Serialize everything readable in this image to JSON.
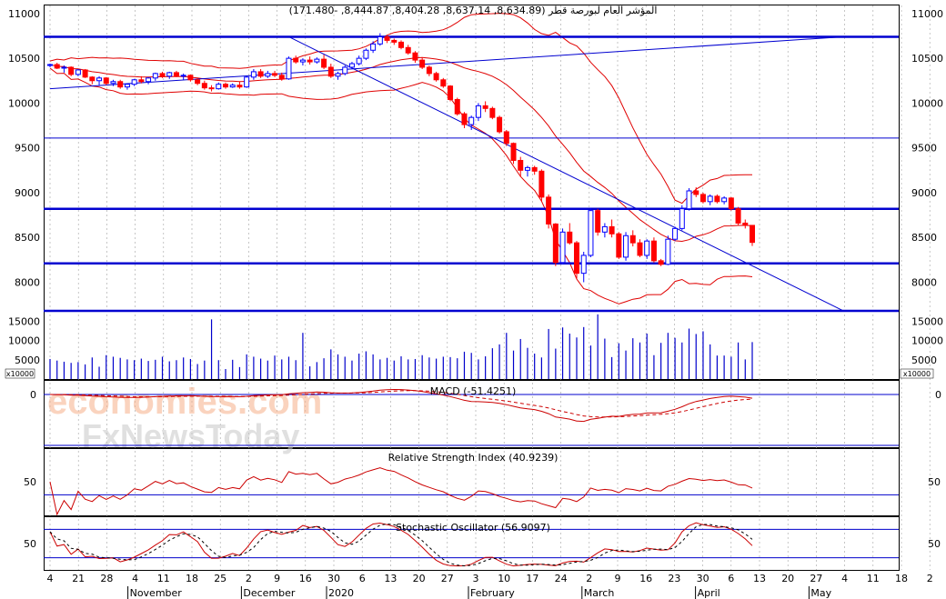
{
  "chart_data": [
    {
      "type": "candlestick",
      "panel": "price",
      "title": "المؤشر العام لبورصة قطر (8,634.89, 8,637.14, 8,404.28, 8,444.87, -171.480)",
      "ylim": [
        7650,
        11100
      ],
      "y_ticks": [
        8000,
        8500,
        9000,
        9500,
        10000,
        10500,
        11000
      ],
      "horizontal_lines": [
        10740,
        9610,
        8820,
        8210,
        7680
      ],
      "trendlines": [
        {
          "from": [
            0,
            10160
          ],
          "to": [
            113,
            10740
          ]
        },
        {
          "from": [
            34,
            10740
          ],
          "to": [
            113,
            7680
          ]
        }
      ],
      "colors": {
        "up": "#0000ff",
        "down": "#ff0000",
        "bands": "#e00000",
        "lines": "#0000d0"
      }
    },
    {
      "type": "bar",
      "panel": "volume",
      "unit_label": "x10000",
      "ylim": [
        0,
        17000
      ],
      "y_ticks": [
        5000,
        10000,
        15000
      ],
      "values": [
        5200,
        4800,
        4500,
        4200,
        4400,
        3800,
        5600,
        3200,
        6200,
        5800,
        5500,
        5100,
        4900,
        5300,
        4700,
        5000,
        5800,
        4600,
        4900,
        5600,
        5200,
        3900,
        4800,
        15500,
        4900,
        2600,
        5000,
        3100,
        6400,
        5800,
        5300,
        4800,
        6100,
        5100,
        5800,
        4900,
        12000,
        3300,
        4400,
        5400,
        7700,
        6400,
        5800,
        4800,
        6600,
        7200,
        6400,
        5100,
        5500,
        4800,
        5900,
        5100,
        5200,
        6200,
        5600,
        5300,
        5800,
        5700,
        5400,
        7100,
        6800,
        5100,
        5900,
        8000,
        9000,
        12000,
        7400,
        10400,
        8100,
        6600,
        5600,
        13000,
        7900,
        13400,
        11800,
        10800,
        13500,
        8700,
        16800,
        10500,
        5700,
        9300,
        7400,
        10600,
        9500,
        11800,
        6200,
        9400,
        12000,
        10700,
        9500,
        13100,
        11700,
        12400,
        9000,
        6100,
        6100,
        5800,
        9500,
        5100,
        9600
      ]
    },
    {
      "type": "line",
      "panel": "macd",
      "title": "MACD (-51.4251)",
      "y_ticks": [
        0
      ],
      "series": [
        {
          "values": []
        }
      ]
    },
    {
      "type": "line",
      "panel": "rsi",
      "title": "Relative Strength Index (40.9239)",
      "y_ticks": [
        50
      ]
    },
    {
      "type": "line",
      "panel": "stochastic",
      "title": "Stochastic Oscillator (56.9097)",
      "y_ticks": [
        50
      ]
    }
  ],
  "x_axis": {
    "ticks": [
      "4",
      "21",
      "28",
      "4",
      "11",
      "18",
      "25",
      "2",
      "9",
      "16",
      "30",
      "6",
      "13",
      "20",
      "27",
      "3",
      "10",
      "17",
      "24",
      "2",
      "9",
      "16",
      "23",
      "30",
      "6",
      "13",
      "20",
      "27",
      "4",
      "11",
      "18",
      "2"
    ],
    "months": [
      "November",
      "December",
      "2020",
      "February",
      "March",
      "April",
      "May"
    ]
  },
  "price_data": [
    [
      10420,
      10440,
      10400,
      10430
    ],
    [
      10430,
      10450,
      10380,
      10390
    ],
    [
      10390,
      10420,
      10340,
      10400
    ],
    [
      10400,
      10410,
      10300,
      10320
    ],
    [
      10320,
      10380,
      10300,
      10370
    ],
    [
      10370,
      10380,
      10280,
      10290
    ],
    [
      10290,
      10300,
      10210,
      10250
    ],
    [
      10250,
      10300,
      10200,
      10280
    ],
    [
      10280,
      10290,
      10200,
      10220
    ],
    [
      10220,
      10260,
      10190,
      10240
    ],
    [
      10240,
      10260,
      10160,
      10180
    ],
    [
      10180,
      10220,
      10150,
      10210
    ],
    [
      10210,
      10270,
      10190,
      10260
    ],
    [
      10260,
      10300,
      10220,
      10240
    ],
    [
      10240,
      10290,
      10210,
      10280
    ],
    [
      10280,
      10340,
      10250,
      10330
    ],
    [
      10330,
      10350,
      10280,
      10300
    ],
    [
      10300,
      10350,
      10270,
      10340
    ],
    [
      10340,
      10360,
      10290,
      10300
    ],
    [
      10300,
      10330,
      10260,
      10310
    ],
    [
      10310,
      10320,
      10240,
      10260
    ],
    [
      10260,
      10280,
      10200,
      10220
    ],
    [
      10220,
      10250,
      10150,
      10170
    ],
    [
      10170,
      10200,
      10130,
      10160
    ],
    [
      10160,
      10230,
      10150,
      10210
    ],
    [
      10210,
      10230,
      10160,
      10180
    ],
    [
      10180,
      10220,
      10170,
      10200
    ],
    [
      10200,
      10240,
      10160,
      10180
    ],
    [
      10180,
      10300,
      10170,
      10290
    ],
    [
      10290,
      10380,
      10260,
      10350
    ],
    [
      10350,
      10380,
      10280,
      10300
    ],
    [
      10300,
      10360,
      10280,
      10330
    ],
    [
      10330,
      10360,
      10290,
      10310
    ],
    [
      10310,
      10340,
      10250,
      10270
    ],
    [
      10270,
      10520,
      10260,
      10500
    ],
    [
      10500,
      10530,
      10440,
      10460
    ],
    [
      10460,
      10500,
      10420,
      10480
    ],
    [
      10480,
      10520,
      10430,
      10460
    ],
    [
      10460,
      10510,
      10440,
      10490
    ],
    [
      10490,
      10540,
      10380,
      10400
    ],
    [
      10400,
      10440,
      10280,
      10300
    ],
    [
      10300,
      10350,
      10260,
      10330
    ],
    [
      10330,
      10420,
      10310,
      10400
    ],
    [
      10400,
      10460,
      10380,
      10440
    ],
    [
      10440,
      10530,
      10420,
      10500
    ],
    [
      10500,
      10610,
      10480,
      10590
    ],
    [
      10590,
      10690,
      10560,
      10660
    ],
    [
      10660,
      10780,
      10640,
      10740
    ],
    [
      10740,
      10760,
      10670,
      10700
    ],
    [
      10700,
      10720,
      10650,
      10680
    ],
    [
      10680,
      10700,
      10600,
      10620
    ],
    [
      10620,
      10650,
      10540,
      10560
    ],
    [
      10560,
      10580,
      10450,
      10480
    ],
    [
      10480,
      10510,
      10380,
      10400
    ],
    [
      10400,
      10420,
      10300,
      10330
    ],
    [
      10330,
      10350,
      10240,
      10260
    ],
    [
      10260,
      10280,
      10170,
      10190
    ],
    [
      10190,
      10200,
      10020,
      10040
    ],
    [
      10040,
      10060,
      9860,
      9880
    ],
    [
      9880,
      9900,
      9720,
      9760
    ],
    [
      9760,
      9860,
      9700,
      9840
    ],
    [
      9840,
      10000,
      9800,
      9970
    ],
    [
      9970,
      10020,
      9900,
      9940
    ],
    [
      9940,
      9960,
      9820,
      9840
    ],
    [
      9840,
      9860,
      9660,
      9680
    ],
    [
      9680,
      9700,
      9520,
      9550
    ],
    [
      9550,
      9560,
      9320,
      9360
    ],
    [
      9360,
      9400,
      9180,
      9250
    ],
    [
      9250,
      9300,
      9180,
      9280
    ],
    [
      9280,
      9300,
      9200,
      9240
    ],
    [
      9240,
      9260,
      8900,
      8950
    ],
    [
      8950,
      8980,
      8600,
      8650
    ],
    [
      8650,
      8660,
      8180,
      8220
    ],
    [
      8220,
      8600,
      8200,
      8560
    ],
    [
      8560,
      8660,
      8420,
      8440
    ],
    [
      8440,
      8460,
      8040,
      8100
    ],
    [
      8100,
      8340,
      8000,
      8300
    ],
    [
      8300,
      8830,
      8280,
      8800
    ],
    [
      8800,
      8820,
      8520,
      8560
    ],
    [
      8560,
      8660,
      8500,
      8620
    ],
    [
      8620,
      8700,
      8500,
      8540
    ],
    [
      8540,
      8560,
      8260,
      8280
    ],
    [
      8280,
      8560,
      8240,
      8520
    ],
    [
      8520,
      8580,
      8400,
      8440
    ],
    [
      8440,
      8480,
      8280,
      8300
    ],
    [
      8300,
      8480,
      8260,
      8460
    ],
    [
      8460,
      8500,
      8220,
      8240
    ],
    [
      8240,
      8260,
      8180,
      8200
    ],
    [
      8200,
      8520,
      8190,
      8480
    ],
    [
      8480,
      8620,
      8460,
      8600
    ],
    [
      8600,
      8860,
      8580,
      8820
    ],
    [
      8820,
      9050,
      8800,
      9020
    ],
    [
      9020,
      9060,
      8950,
      8980
    ],
    [
      8980,
      9000,
      8880,
      8900
    ],
    [
      8900,
      8980,
      8860,
      8960
    ],
    [
      8960,
      8980,
      8880,
      8900
    ],
    [
      8900,
      8960,
      8870,
      8940
    ],
    [
      8940,
      8950,
      8800,
      8820
    ],
    [
      8820,
      8840,
      8640,
      8660
    ],
    [
      8660,
      8700,
      8600,
      8640
    ],
    [
      8634.89,
      8637.14,
      8404.28,
      8444.87
    ]
  ],
  "watermark": {
    "line1": "economies.com",
    "line2": "FxNewsToday"
  },
  "colors": {
    "grid": "#a0a0a0",
    "axis": "#000000",
    "bg": "#ffffff"
  }
}
